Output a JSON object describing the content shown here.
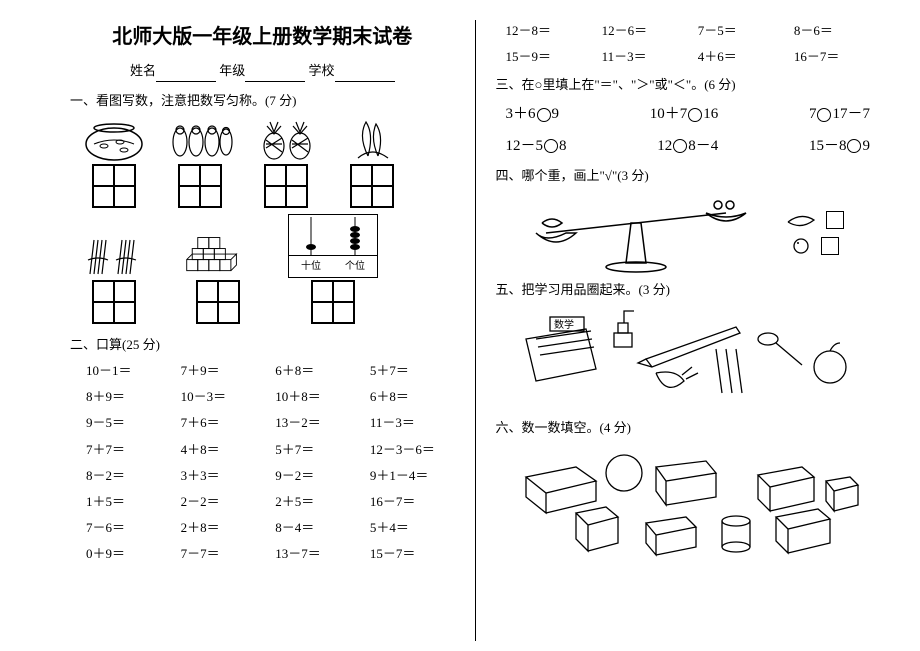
{
  "title": "北师大版一年级上册数学期末试卷",
  "form": {
    "name_label": "姓名",
    "grade_label": "年级",
    "school_label": "学校"
  },
  "sections": {
    "s1": "一、看图写数，注意把数写匀称。(7 分)",
    "s2": "二、口算(25 分)",
    "s3": "三、在○里填上在\"＝\"、\"＞\"或\"＜\"。(6 分)",
    "s4": "四、哪个重，画上\"√\"(3 分)",
    "s5": "五、把学习用品圈起来。(3 分)",
    "s6": "六、数一数填空。(4 分)"
  },
  "abacus": {
    "tens": "十位",
    "ones": "个位"
  },
  "calc_top": [
    "12－8＝",
    "12－6＝",
    "7－5＝",
    "8－6＝",
    "15－9＝",
    "11－3＝",
    "4＋6＝",
    "16－7＝"
  ],
  "calc": [
    "10－1＝",
    "7＋9＝",
    "6＋8＝",
    "5＋7＝",
    "8＋9＝",
    "10－3＝",
    "10＋8＝",
    "6＋8＝",
    "9－5＝",
    "7＋6＝",
    "13－2＝",
    "11－3＝",
    "7＋7＝",
    "4＋8＝",
    "5＋7＝",
    "12－3－6＝",
    "8－2＝",
    "3＋3＝",
    "9－2＝",
    "9＋1－4＝",
    "1＋5＝",
    "2－2＝",
    "2＋5＝",
    "16－7＝",
    "7－6＝",
    "2＋8＝",
    "8－4＝",
    "5＋4＝",
    "0＋9＝",
    "7－7＝",
    "13－7＝",
    "15－7＝"
  ],
  "compare_row1": [
    "3＋6○9",
    "10＋7○16",
    "7○17－7"
  ],
  "compare_row2": [
    "12－5○8",
    "12○8－4",
    "15－8○9"
  ],
  "colors": {
    "ink": "#000000",
    "paper": "#ffffff"
  }
}
